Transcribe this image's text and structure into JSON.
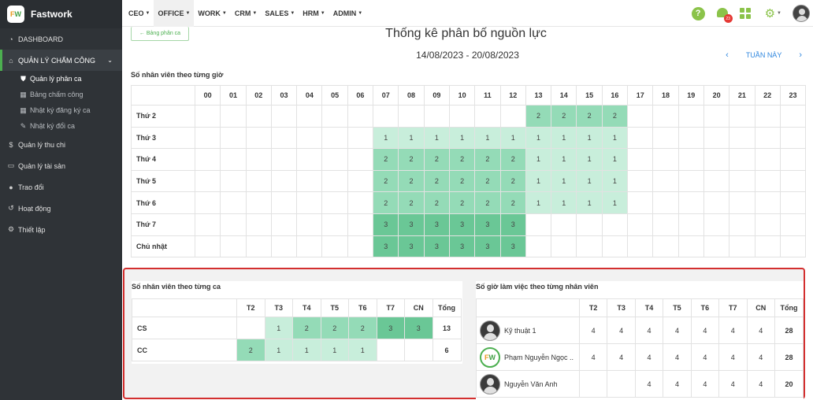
{
  "app": {
    "name": "Fastwork",
    "logo_text": "FW"
  },
  "sidebar": {
    "items": [
      {
        "label": "DASHBOARD",
        "icon": "dashboard-icon"
      },
      {
        "label": "QUẢN LÝ CHẤM CÔNG",
        "icon": "home-icon",
        "active": true,
        "children": [
          {
            "label": "Quản lý phân ca",
            "icon": "shield-icon",
            "active": true
          },
          {
            "label": "Bảng chấm công",
            "icon": "calendar-icon"
          },
          {
            "label": "Nhật ký đăng ký ca",
            "icon": "calendar-icon"
          },
          {
            "label": "Nhật ký đổi ca",
            "icon": "edit-icon"
          }
        ]
      },
      {
        "label": "Quản lý thu chi",
        "icon": "dollar-icon"
      },
      {
        "label": "Quản lý tài sản",
        "icon": "monitor-icon"
      },
      {
        "label": "Trao đổi",
        "icon": "chat-icon"
      },
      {
        "label": "Hoạt động",
        "icon": "history-icon"
      },
      {
        "label": "Thiết lập",
        "icon": "gear-icon"
      }
    ]
  },
  "topbar": {
    "menu": [
      "CEO",
      "OFFICE",
      "WORK",
      "CRM",
      "SALES",
      "HRM",
      "ADMIN"
    ],
    "active_menu": "OFFICE",
    "notification_count": "23"
  },
  "page": {
    "back_label": "Bảng phân ca",
    "title": "Thống kê phân bố nguồn lực",
    "date_range": "14/08/2023 - 20/08/2023",
    "week_label": "TUẦN NÀY"
  },
  "hourly": {
    "title": "Số nhân viên theo từng giờ",
    "hours": [
      "00",
      "01",
      "02",
      "03",
      "04",
      "05",
      "06",
      "07",
      "08",
      "09",
      "10",
      "11",
      "12",
      "13",
      "14",
      "15",
      "16",
      "17",
      "18",
      "19",
      "20",
      "21",
      "22",
      "23"
    ],
    "rows": [
      {
        "day": "Thứ 2",
        "values": [
          null,
          null,
          null,
          null,
          null,
          null,
          null,
          null,
          null,
          null,
          null,
          null,
          null,
          2,
          2,
          2,
          2,
          null,
          null,
          null,
          null,
          null,
          null,
          null
        ]
      },
      {
        "day": "Thứ 3",
        "values": [
          null,
          null,
          null,
          null,
          null,
          null,
          null,
          1,
          1,
          1,
          1,
          1,
          1,
          1,
          1,
          1,
          1,
          null,
          null,
          null,
          null,
          null,
          null,
          null
        ]
      },
      {
        "day": "Thứ 4",
        "values": [
          null,
          null,
          null,
          null,
          null,
          null,
          null,
          2,
          2,
          2,
          2,
          2,
          2,
          1,
          1,
          1,
          1,
          null,
          null,
          null,
          null,
          null,
          null,
          null
        ]
      },
      {
        "day": "Thứ 5",
        "values": [
          null,
          null,
          null,
          null,
          null,
          null,
          null,
          2,
          2,
          2,
          2,
          2,
          2,
          1,
          1,
          1,
          1,
          null,
          null,
          null,
          null,
          null,
          null,
          null
        ]
      },
      {
        "day": "Thứ 6",
        "values": [
          null,
          null,
          null,
          null,
          null,
          null,
          null,
          2,
          2,
          2,
          2,
          2,
          2,
          1,
          1,
          1,
          1,
          null,
          null,
          null,
          null,
          null,
          null,
          null
        ]
      },
      {
        "day": "Thứ 7",
        "values": [
          null,
          null,
          null,
          null,
          null,
          null,
          null,
          3,
          3,
          3,
          3,
          3,
          3,
          null,
          null,
          null,
          null,
          null,
          null,
          null,
          null,
          null,
          null,
          null
        ]
      },
      {
        "day": "Chủ nhật",
        "values": [
          null,
          null,
          null,
          null,
          null,
          null,
          null,
          3,
          3,
          3,
          3,
          3,
          3,
          null,
          null,
          null,
          null,
          null,
          null,
          null,
          null,
          null,
          null,
          null
        ]
      }
    ]
  },
  "by_shift": {
    "title": "Số nhân viên theo từng ca",
    "columns": [
      "T2",
      "T3",
      "T4",
      "T5",
      "T6",
      "T7",
      "CN"
    ],
    "total_label": "Tổng",
    "rows": [
      {
        "name": "CS",
        "values": [
          null,
          1,
          2,
          2,
          2,
          3,
          3
        ],
        "total": "13"
      },
      {
        "name": "CC",
        "values": [
          2,
          1,
          1,
          1,
          1,
          null,
          null
        ],
        "total": "6"
      }
    ]
  },
  "by_employee": {
    "title": "Số giờ làm việc theo từng nhân viên",
    "columns": [
      "T2",
      "T3",
      "T4",
      "T5",
      "T6",
      "T7",
      "CN"
    ],
    "total_label": "Tổng",
    "rows": [
      {
        "name": "Kỹ thuật 1",
        "avatar": "user-icon",
        "values": [
          "4",
          "4",
          "4",
          "4",
          "4",
          "4",
          "4"
        ],
        "total": "28"
      },
      {
        "name": "Phạm Nguyễn Ngọc ..",
        "avatar": "fastwork-logo",
        "values": [
          "4",
          "4",
          "4",
          "4",
          "4",
          "4",
          "4"
        ],
        "total": "28"
      },
      {
        "name": "Nguyễn Văn Anh",
        "avatar": "user-icon",
        "values": [
          "",
          "",
          "4",
          "4",
          "4",
          "4",
          "4"
        ],
        "total": "20"
      }
    ]
  }
}
